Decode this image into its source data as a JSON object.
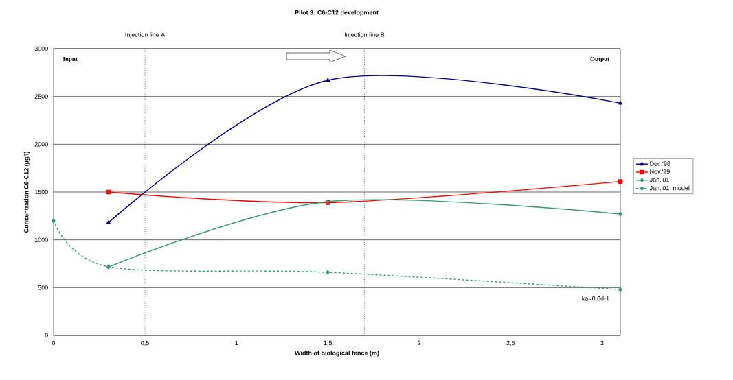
{
  "chart_data": {
    "type": "line",
    "title": "Pilot 3. C6-C12 development",
    "xlabel": "Width of biological fence (m)",
    "ylabel": "Concentration C6-C12 (µg/l)",
    "xlim": [
      0,
      3.1
    ],
    "ylim": [
      0,
      3000
    ],
    "xticks": [
      0,
      {
        "value": 0.5,
        "label": "0,5"
      },
      1,
      {
        "value": 1.5,
        "label": "1,5"
      },
      2,
      {
        "value": 2.5,
        "label": "2,5"
      },
      3
    ],
    "yticks": [
      0,
      500,
      1000,
      1500,
      2000,
      2500,
      3000
    ],
    "grid": "y",
    "legend": "right",
    "series": [
      {
        "name": "Dec.'98",
        "color": "#000080",
        "marker": "triangle",
        "line_style": "solid",
        "x": [
          0.3,
          1.5,
          3.1
        ],
        "values": [
          1180,
          2670,
          2430
        ]
      },
      {
        "name": "Nov.'99",
        "color": "#ff0000",
        "marker": "square",
        "line_style": "solid",
        "x": [
          0.3,
          1.5,
          3.1
        ],
        "values": [
          1500,
          1390,
          1610
        ]
      },
      {
        "name": "Jan.'01",
        "color": "#339966",
        "marker": "diamond",
        "line_style": "solid",
        "x": [
          0.3,
          1.5,
          3.1
        ],
        "values": [
          715,
          1400,
          1270
        ]
      },
      {
        "name": "Jan.'01, model",
        "color": "#339966",
        "marker": "diamond",
        "line_style": "dashed",
        "x": [
          0,
          0.3,
          1.5,
          3.1
        ],
        "values": [
          1200,
          720,
          660,
          480
        ]
      }
    ],
    "ref_lines": [
      {
        "axis": "x",
        "value": 0.5,
        "label": "Injection line A",
        "color": "#000000",
        "line_style": "dotted"
      },
      {
        "axis": "x",
        "value": 1.7,
        "label": "Injection line B",
        "color": "#000000",
        "line_style": "dotted"
      }
    ],
    "annotations": [
      "Input",
      "Output",
      "ka=0,6d-1"
    ]
  }
}
